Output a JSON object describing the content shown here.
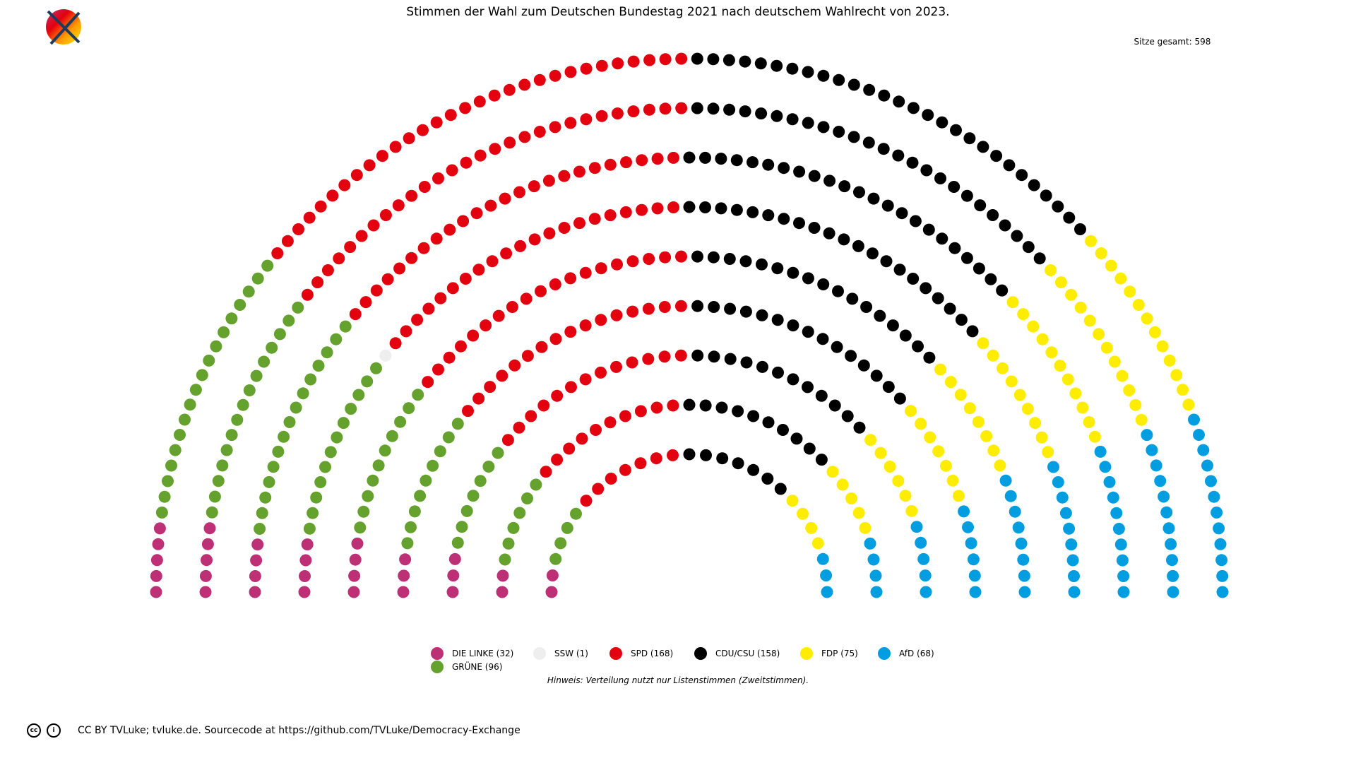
{
  "chart_data": {
    "type": "parliament",
    "title": "Stimmen der Wahl zum Deutschen Bundestag 2021 nach deutschem Wahlrecht von 2023.",
    "total_label": "Sitze gesamt: 598",
    "total": 598,
    "rows": 9,
    "series": [
      {
        "name": "DIE LINKE",
        "label": "DIE LINKE (32)",
        "value": 32,
        "color": "#BE3075"
      },
      {
        "name": "GRÜNE",
        "label": "GRÜNE (96)",
        "value": 96,
        "color": "#64A12D"
      },
      {
        "name": "SSW",
        "label": "SSW (1)",
        "value": 1,
        "color": "#EEEEEE"
      },
      {
        "name": "SPD",
        "label": "SPD (168)",
        "value": 168,
        "color": "#E3000F"
      },
      {
        "name": "CDU/CSU",
        "label": "CDU/CSU (158)",
        "value": 158,
        "color": "#000000"
      },
      {
        "name": "FDP",
        "label": "FDP (75)",
        "value": 75,
        "color": "#FFED00"
      },
      {
        "name": "AfD",
        "label": "AfD (68)",
        "value": 68,
        "color": "#009EE0"
      }
    ],
    "note": "Hinweis: Verteilung nutzt nur Listenstimmen (Zweitstimmen).",
    "legend_position": "bottom-center"
  },
  "footer": {
    "cc_icon": "cc-icon",
    "by_icon": "by-icon",
    "text": "CC BY TVLuke; tvluke.de. Sourcecode at https://github.com/TVLuke/Democracy-Exchange"
  },
  "logo": {
    "icon": "crossed-rainbow-circle-logo"
  }
}
